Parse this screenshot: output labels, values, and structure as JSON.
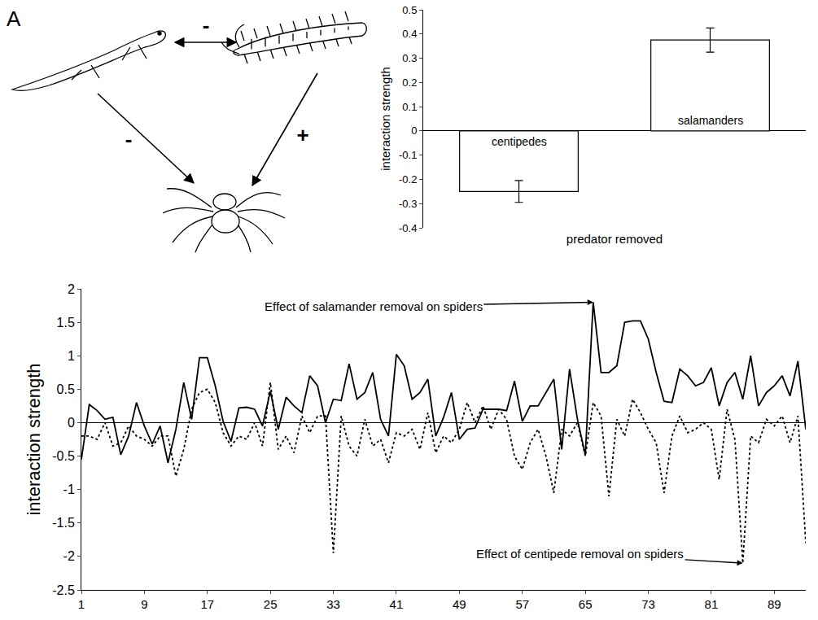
{
  "panel": "A",
  "diagram": {
    "signs": {
      "salamander_centipede": "-",
      "salamander_spider": "-",
      "centipede_spider": "+"
    }
  },
  "chart_data": [
    {
      "type": "bar",
      "categories": [
        "centipedes",
        "salamanders"
      ],
      "values": [
        -0.25,
        0.375
      ],
      "errors": [
        0.045,
        0.05
      ],
      "color": "#ffffff",
      "xlabel": "predator removed",
      "ylabel": "interaction strength",
      "ylim": [
        -0.4,
        0.5
      ],
      "yticks": [
        -0.4,
        -0.3,
        -0.2,
        -0.1,
        0,
        0.1,
        0.2,
        0.3,
        0.4,
        0.5
      ],
      "tick_labels": "y",
      "grid": false
    },
    {
      "type": "line",
      "x": [
        1,
        2,
        3,
        4,
        5,
        6,
        7,
        8,
        9,
        10,
        11,
        12,
        13,
        14,
        15,
        16,
        17,
        18,
        19,
        20,
        21,
        22,
        23,
        24,
        25,
        26,
        27,
        28,
        29,
        30,
        31,
        32,
        33,
        34,
        35,
        36,
        37,
        38,
        39,
        40,
        41,
        42,
        43,
        44,
        45,
        46,
        47,
        48,
        49,
        50,
        51,
        52,
        53,
        54,
        55,
        56,
        57,
        58,
        59,
        60,
        61,
        62,
        63,
        64,
        65,
        66,
        67,
        68,
        69,
        70,
        71,
        72,
        73,
        74,
        75,
        76,
        77,
        78,
        79,
        80,
        81,
        82,
        83,
        84,
        85,
        86,
        87,
        88,
        89,
        90,
        91,
        92,
        93
      ],
      "series": [
        {
          "annotation": "Effect of salamander removal on spiders",
          "color": "#000000",
          "line_style": "solid",
          "values": [
            -0.55,
            0.27,
            0.18,
            0.05,
            0.08,
            -0.48,
            -0.2,
            0.3,
            -0.05,
            -0.32,
            -0.05,
            -0.6,
            -0.1,
            0.6,
            0.05,
            0.97,
            0.97,
            0.55,
            0.02,
            -0.28,
            0.22,
            0.23,
            0.2,
            -0.05,
            0.47,
            -0.1,
            0.38,
            0.25,
            0.15,
            0.7,
            0.55,
            0.0,
            0.35,
            0.33,
            0.88,
            0.35,
            0.45,
            0.75,
            0.05,
            -0.2,
            1.02,
            0.85,
            0.35,
            0.45,
            0.65,
            -0.2,
            0.08,
            0.45,
            -0.25,
            -0.1,
            -0.08,
            0.2,
            0.2,
            0.2,
            0.18,
            0.62,
            0.02,
            0.25,
            0.25,
            0.45,
            0.65,
            -0.4,
            0.8,
            0.05,
            -0.48,
            1.8,
            0.75,
            0.75,
            0.85,
            1.5,
            1.52,
            1.52,
            1.25,
            0.75,
            0.32,
            0.3,
            0.8,
            0.7,
            0.55,
            0.6,
            0.82,
            0.25,
            0.6,
            0.75,
            0.35,
            1.0,
            0.25,
            0.45,
            0.55,
            0.7,
            0.4,
            0.92,
            -0.1
          ]
        },
        {
          "annotation": "Effect of centipede removal on spiders",
          "color": "#000000",
          "line_style": "dot",
          "values": [
            -0.2,
            -0.2,
            -0.25,
            0.0,
            -0.35,
            -0.3,
            -0.05,
            -0.2,
            -0.25,
            -0.35,
            -0.2,
            -0.2,
            -0.8,
            -0.4,
            0.2,
            0.45,
            0.5,
            0.3,
            -0.15,
            -0.35,
            -0.2,
            -0.25,
            0.0,
            -0.35,
            0.6,
            -0.4,
            -0.2,
            -0.45,
            0.1,
            -0.15,
            0.1,
            0.1,
            -1.95,
            0.1,
            -0.35,
            -0.5,
            0.05,
            -0.35,
            -0.25,
            -0.6,
            -0.15,
            -0.2,
            -0.1,
            -0.4,
            0.15,
            -0.45,
            -0.2,
            -0.3,
            -0.1,
            0.3,
            0.0,
            0.25,
            -0.1,
            0.2,
            0.05,
            -0.5,
            -0.7,
            -0.3,
            -0.1,
            -0.5,
            -1.05,
            -0.1,
            -0.2,
            0.0,
            -0.5,
            0.3,
            0.1,
            -1.1,
            0.05,
            -0.2,
            0.35,
            0.15,
            -0.1,
            -0.3,
            -1.05,
            -0.2,
            0.1,
            -0.15,
            -0.1,
            0.0,
            -0.1,
            -0.85,
            0.2,
            -0.25,
            -2.1,
            -0.2,
            -0.3,
            0.05,
            -0.05,
            0.1,
            -0.3,
            0.1,
            -1.8
          ]
        }
      ],
      "ylabel": "interaction strength",
      "xlim": [
        1,
        93
      ],
      "xticks": [
        1,
        9,
        17,
        25,
        33,
        41,
        49,
        57,
        65,
        73,
        81,
        89
      ],
      "ylim": [
        -2.5,
        2
      ],
      "yticks": [
        -2.5,
        -2,
        -1.5,
        -1,
        -0.5,
        0,
        0.5,
        1,
        1.5,
        2
      ],
      "grid": false
    }
  ]
}
